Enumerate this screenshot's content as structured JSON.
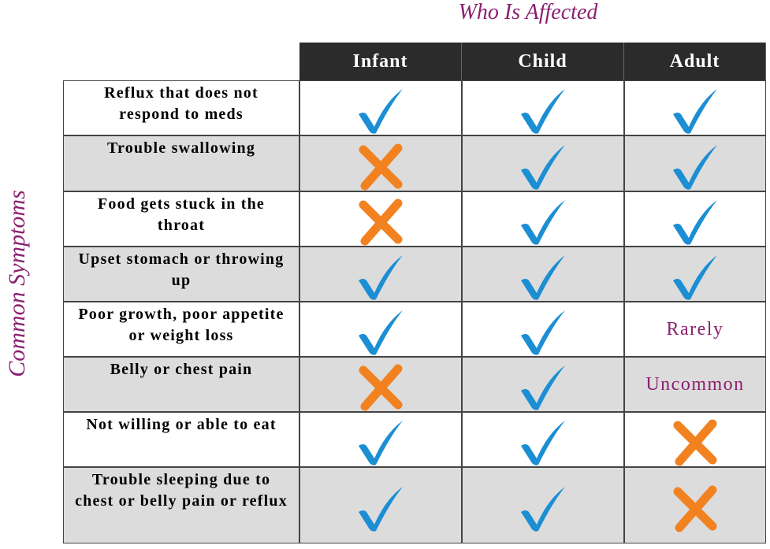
{
  "column_title": "Who Is Affected",
  "row_title": "Common Symptoms",
  "table": {
    "columns": [
      "Infant",
      "Child",
      "Adult"
    ],
    "rows": [
      {
        "label": "Reflux that does not respond to meds"
      },
      {
        "label": "Trouble swallowing"
      },
      {
        "label": "Food gets stuck in the throat"
      },
      {
        "label": "Upset stomach or throwing up"
      },
      {
        "label": "Poor growth, poor appetite or weight loss",
        "adult": "Rarely"
      },
      {
        "label": "Belly or chest pain",
        "adult": "Uncommon"
      },
      {
        "label": "Not willing or able to eat"
      },
      {
        "label": "Trouble sleeping due to chest or belly pain or reflux"
      }
    ]
  }
}
